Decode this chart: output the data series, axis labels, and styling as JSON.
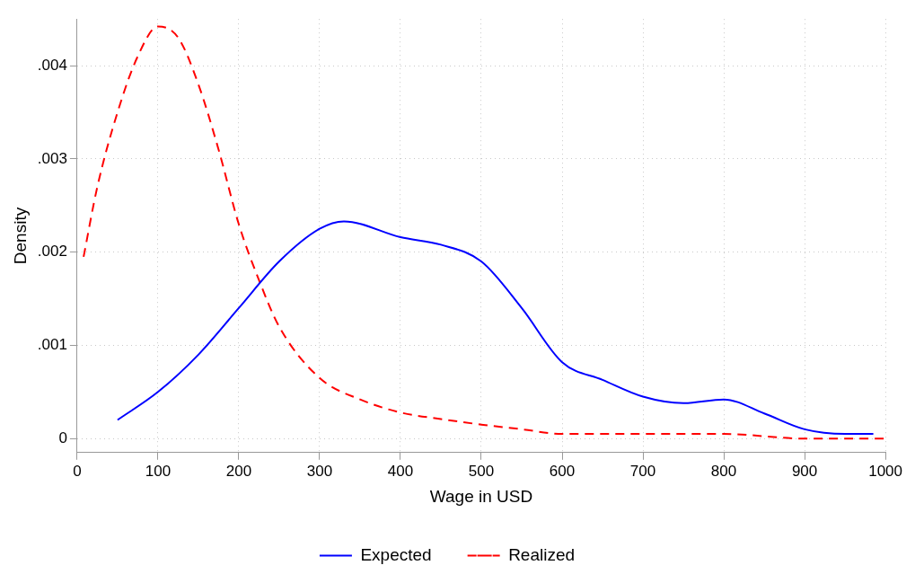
{
  "chart_data": {
    "type": "line",
    "xlabel": "Wage in USD",
    "ylabel": "Density",
    "xlim": [
      0,
      1000
    ],
    "xticks": [
      0,
      100,
      200,
      300,
      400,
      500,
      600,
      700,
      800,
      900,
      1000
    ],
    "ylim": [
      -0.00015,
      0.0045
    ],
    "yticks": [
      0,
      {
        "value": 0.001,
        "label": ".001"
      },
      {
        "value": 0.002,
        "label": ".002"
      },
      {
        "value": 0.003,
        "label": ".003"
      },
      {
        "value": 0.004,
        "label": ".004"
      }
    ],
    "grid": true,
    "legend": "bottom",
    "marker": "none",
    "series": [
      {
        "name": "Expected",
        "color": "#0000ff",
        "line_style": "solid",
        "x": [
          50,
          100,
          150,
          200,
          250,
          300,
          330,
          400,
          450,
          500,
          550,
          600,
          650,
          700,
          750,
          800,
          850,
          900,
          950,
          985
        ],
        "values": [
          0.0002,
          0.0005,
          0.0009,
          0.0014,
          0.0019,
          0.00225,
          0.00233,
          0.00216,
          0.00208,
          0.0019,
          0.0014,
          0.00082,
          0.00063,
          0.00045,
          0.00038,
          0.00042,
          0.00027,
          0.0001,
          5e-05,
          5e-05
        ]
      },
      {
        "name": "Realized",
        "color": "#ff0000",
        "line_style": "dashed",
        "x": [
          8,
          25,
          50,
          75,
          100,
          125,
          150,
          175,
          200,
          225,
          250,
          300,
          350,
          400,
          450,
          500,
          550,
          600,
          700,
          800,
          900,
          1000
        ],
        "values": [
          0.00195,
          0.0027,
          0.0035,
          0.0041,
          0.00442,
          0.0043,
          0.0038,
          0.0031,
          0.0023,
          0.0017,
          0.0012,
          0.00065,
          0.00042,
          0.00028,
          0.00021,
          0.00015,
          0.0001,
          5e-05,
          5e-05,
          5e-05,
          0,
          0
        ]
      }
    ]
  }
}
